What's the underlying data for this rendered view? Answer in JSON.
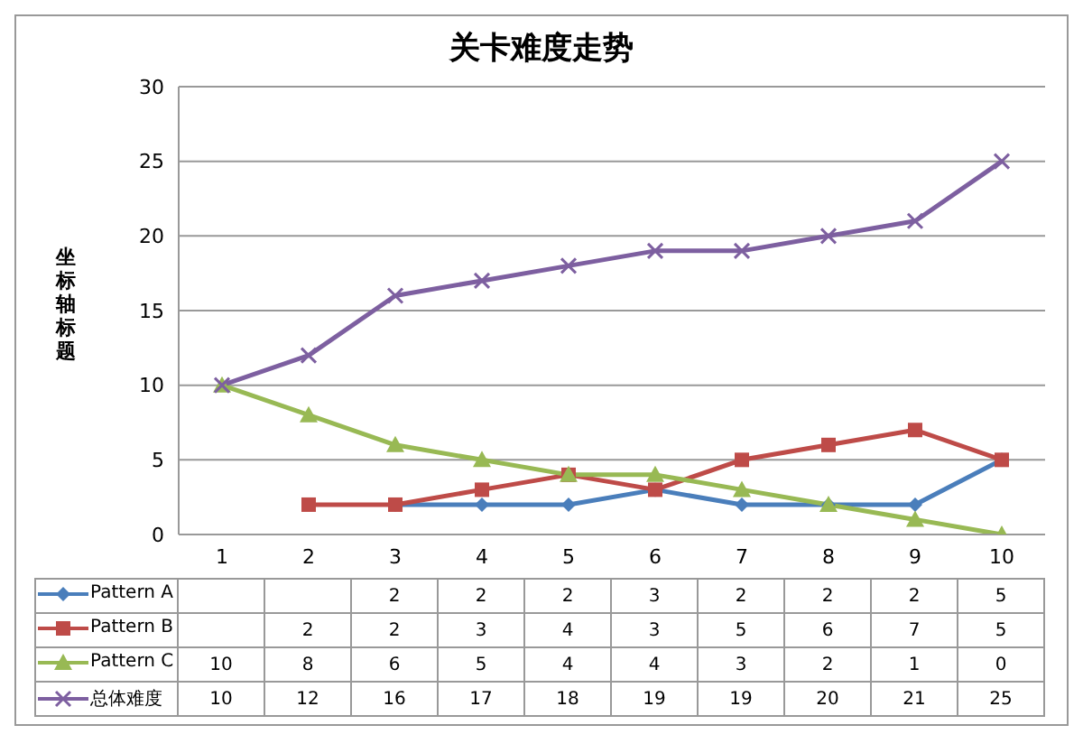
{
  "chart_data": {
    "type": "line",
    "title": "关卡难度走势",
    "ylabel": "坐标轴标题",
    "categories": [
      "1",
      "2",
      "3",
      "4",
      "5",
      "6",
      "7",
      "8",
      "9",
      "10"
    ],
    "series": [
      {
        "name": "Pattern A",
        "color": "#4a7ebb",
        "marker": "diamond",
        "values": [
          null,
          null,
          2,
          2,
          2,
          3,
          2,
          2,
          2,
          5
        ]
      },
      {
        "name": "Pattern B",
        "color": "#be4b48",
        "marker": "square",
        "values": [
          null,
          2,
          2,
          3,
          4,
          3,
          5,
          6,
          7,
          5
        ]
      },
      {
        "name": "Pattern C",
        "color": "#98b954",
        "marker": "triangle",
        "values": [
          10,
          8,
          6,
          5,
          4,
          4,
          3,
          2,
          1,
          0
        ]
      },
      {
        "name": "总体难度",
        "color": "#7d5fa0",
        "marker": "cross",
        "values": [
          10,
          12,
          16,
          17,
          18,
          19,
          19,
          20,
          21,
          25
        ]
      }
    ],
    "ylim": [
      0,
      30
    ],
    "yticks": [
      0,
      5,
      10,
      15,
      20,
      25,
      30
    ],
    "grid": "y",
    "legend": "bottom",
    "data_labels": true
  }
}
